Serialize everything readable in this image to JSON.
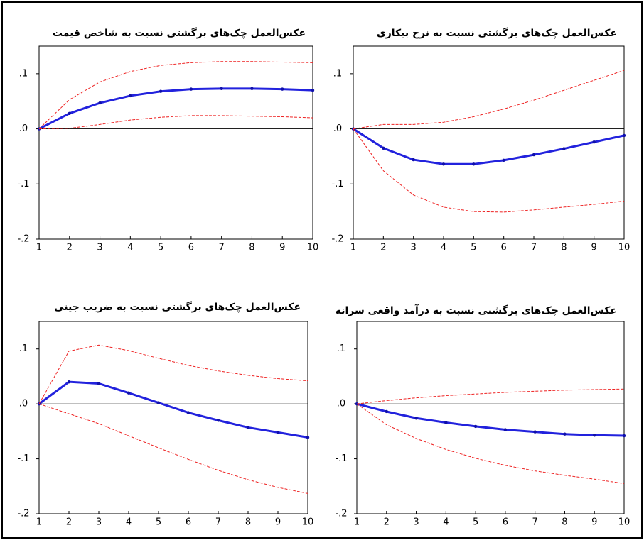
{
  "chart_data": [
    {
      "type": "line",
      "title": "عکس‌العمل چک‌های برگشتی نسبت به شاخص قیمت",
      "x": [
        1,
        2,
        3,
        4,
        5,
        6,
        7,
        8,
        9,
        10
      ],
      "xlim": [
        1,
        10
      ],
      "xticks": [
        1,
        2,
        3,
        4,
        5,
        6,
        7,
        8,
        9,
        10
      ],
      "ylim": [
        -0.2,
        0.15
      ],
      "yticks": [
        {
          "value": -0.2,
          "label": "-.2"
        },
        {
          "value": -0.1,
          "label": "-.1"
        },
        {
          "value": 0,
          "label": ".0"
        },
        {
          "value": 0.1,
          "label": ".1"
        }
      ],
      "series": [
        {
          "color": "#2222dd",
          "style": "solid",
          "values": [
            0,
            0.028,
            0.047,
            0.06,
            0.068,
            0.072,
            0.073,
            0.073,
            0.072,
            0.07
          ]
        },
        {
          "color": "#ee2222",
          "style": "dashed",
          "values": [
            0,
            0.053,
            0.085,
            0.104,
            0.115,
            0.12,
            0.122,
            0.122,
            0.121,
            0.12
          ]
        },
        {
          "color": "#ee2222",
          "style": "dashed",
          "values": [
            0,
            0.001,
            0.008,
            0.016,
            0.021,
            0.024,
            0.024,
            0.023,
            0.022,
            0.02
          ]
        }
      ]
    },
    {
      "type": "line",
      "title": "عکس‌العمل چک‌های برگشتی نسبت به نرخ بیکاری",
      "x": [
        1,
        2,
        3,
        4,
        5,
        6,
        7,
        8,
        9,
        10
      ],
      "xlim": [
        1,
        10
      ],
      "xticks": [
        1,
        2,
        3,
        4,
        5,
        6,
        7,
        8,
        9,
        10
      ],
      "ylim": [
        -0.2,
        0.15
      ],
      "yticks": [
        {
          "value": -0.2,
          "label": "-.2"
        },
        {
          "value": -0.1,
          "label": "-.1"
        },
        {
          "value": 0,
          "label": ".0"
        },
        {
          "value": 0.1,
          "label": ".1"
        }
      ],
      "series": [
        {
          "color": "#2222dd",
          "style": "solid",
          "values": [
            0,
            -0.035,
            -0.056,
            -0.064,
            -0.064,
            -0.057,
            -0.047,
            -0.036,
            -0.024,
            -0.012
          ]
        },
        {
          "color": "#ee2222",
          "style": "dashed",
          "values": [
            0,
            0.008,
            0.008,
            0.012,
            0.022,
            0.036,
            0.052,
            0.07,
            0.088,
            0.106
          ]
        },
        {
          "color": "#ee2222",
          "style": "dashed",
          "values": [
            0,
            -0.076,
            -0.12,
            -0.142,
            -0.15,
            -0.151,
            -0.147,
            -0.142,
            -0.137,
            -0.131
          ]
        }
      ]
    },
    {
      "type": "line",
      "title": "عکس‌العمل چک‌های برگشتی نسبت به ضریب جینی",
      "x": [
        1,
        2,
        3,
        4,
        5,
        6,
        7,
        8,
        9,
        10
      ],
      "xlim": [
        1,
        10
      ],
      "xticks": [
        1,
        2,
        3,
        4,
        5,
        6,
        7,
        8,
        9,
        10
      ],
      "ylim": [
        -0.2,
        0.15
      ],
      "yticks": [
        {
          "value": -0.2,
          "label": "-.2"
        },
        {
          "value": -0.1,
          "label": "-.1"
        },
        {
          "value": 0,
          "label": ".0"
        },
        {
          "value": 0.1,
          "label": ".1"
        }
      ],
      "series": [
        {
          "color": "#2222dd",
          "style": "solid",
          "values": [
            0,
            0.04,
            0.037,
            0.02,
            0.002,
            -0.016,
            -0.03,
            -0.043,
            -0.052,
            -0.061
          ]
        },
        {
          "color": "#ee2222",
          "style": "dashed",
          "values": [
            0,
            0.096,
            0.107,
            0.097,
            0.083,
            0.07,
            0.06,
            0.052,
            0.046,
            0.042
          ]
        },
        {
          "color": "#ee2222",
          "style": "dashed",
          "values": [
            0,
            -0.018,
            -0.036,
            -0.058,
            -0.08,
            -0.101,
            -0.121,
            -0.138,
            -0.152,
            -0.163
          ]
        }
      ]
    },
    {
      "type": "line",
      "title": "عکس‌العمل چک‌های برگشتی نسبت به درآمد واقعی سرانه",
      "x": [
        1,
        2,
        3,
        4,
        5,
        6,
        7,
        8,
        9,
        10
      ],
      "xlim": [
        1,
        10
      ],
      "xticks": [
        1,
        2,
        3,
        4,
        5,
        6,
        7,
        8,
        9,
        10
      ],
      "ylim": [
        -0.2,
        0.15
      ],
      "yticks": [
        {
          "value": -0.2,
          "label": "-.2"
        },
        {
          "value": -0.1,
          "label": "-.1"
        },
        {
          "value": 0,
          "label": ".0"
        },
        {
          "value": 0.1,
          "label": ".1"
        }
      ],
      "series": [
        {
          "color": "#2222dd",
          "style": "solid",
          "values": [
            0,
            -0.014,
            -0.026,
            -0.034,
            -0.041,
            -0.047,
            -0.051,
            -0.055,
            -0.057,
            -0.058
          ]
        },
        {
          "color": "#ee2222",
          "style": "dashed",
          "values": [
            0,
            0.006,
            0.011,
            0.015,
            0.018,
            0.021,
            0.023,
            0.025,
            0.026,
            0.027
          ]
        },
        {
          "color": "#ee2222",
          "style": "dashed",
          "values": [
            0,
            -0.038,
            -0.063,
            -0.083,
            -0.099,
            -0.112,
            -0.122,
            -0.13,
            -0.137,
            -0.145
          ]
        }
      ]
    }
  ]
}
